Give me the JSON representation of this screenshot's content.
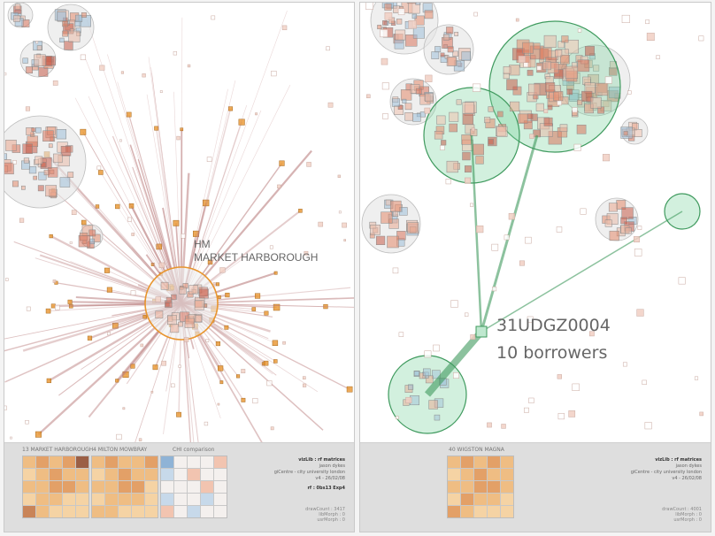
{
  "left": {
    "library_label_1": "HM",
    "library_label_2": "MARKET HARBOROUGH",
    "footer": {
      "titles": [
        "13  MARKET HARBOROUGH",
        "4  MILTON MOWBRAY",
        "CHI comparison"
      ],
      "credits": [
        "vizLib : rf matrices",
        "jason dykes",
        "giCentre - city university london",
        "v4 - 26/02/08"
      ],
      "rf": "rf : 0bs13 Exp4",
      "stats": [
        "drawCount : 3417",
        "libMorph : 0",
        "usrMorph : 0"
      ]
    }
  },
  "right": {
    "borrower_id": "31UDGZ0004",
    "borrower_count": "10 borrowers",
    "footer": {
      "title": "40  WIGSTON MAGNA",
      "credits": [
        "vizLib : rf matrices",
        "jason dykes",
        "giCentre - city university london",
        "v4 - 26/02/08"
      ],
      "stats": [
        "drawCount : 4001",
        "libMorph : 0",
        "usrMorph : 0"
      ]
    }
  },
  "colors": {
    "orange": "#e8952e",
    "flow_line": "#b87a7a",
    "green": "#7fd3a0",
    "green_edge": "#3f9a5e",
    "grey_circle": "#cfcfcf",
    "matrix_warm": "#e9b37a",
    "matrix_cool": "#a8c3dd"
  },
  "matrices": {
    "left_a": [
      [
        2,
        3,
        2,
        3,
        5
      ],
      [
        1,
        2,
        3,
        2,
        2
      ],
      [
        2,
        2,
        3,
        3,
        2
      ],
      [
        1,
        2,
        2,
        1,
        1
      ],
      [
        4,
        2,
        1,
        1,
        1
      ]
    ],
    "left_b": [
      [
        2,
        3,
        2,
        2,
        3
      ],
      [
        1,
        2,
        3,
        2,
        2
      ],
      [
        2,
        2,
        3,
        3,
        1
      ],
      [
        1,
        2,
        2,
        2,
        1
      ],
      [
        2,
        2,
        1,
        1,
        1
      ]
    ],
    "left_c": [
      [
        -2,
        0,
        0,
        0,
        1
      ],
      [
        -1,
        0,
        1,
        0,
        0
      ],
      [
        0,
        0,
        0,
        1,
        0
      ],
      [
        -1,
        0,
        0,
        -1,
        0
      ],
      [
        1,
        0,
        -1,
        0,
        0
      ]
    ],
    "right_a": [
      [
        2,
        3,
        2,
        3,
        2
      ],
      [
        1,
        2,
        3,
        2,
        2
      ],
      [
        2,
        2,
        3,
        3,
        2
      ],
      [
        1,
        3,
        2,
        2,
        1
      ],
      [
        3,
        2,
        1,
        1,
        1
      ]
    ]
  }
}
